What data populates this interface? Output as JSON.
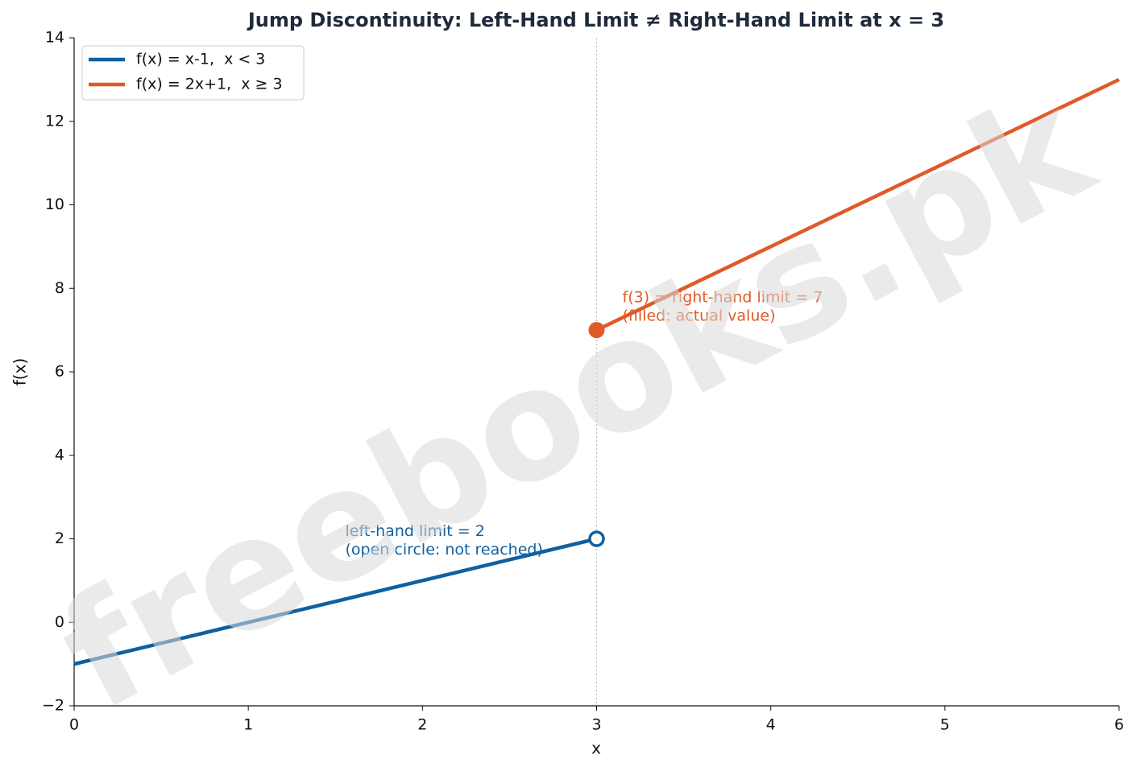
{
  "chart_data": {
    "type": "line",
    "title": "Jump Discontinuity: Left-Hand Limit ≠ Right-Hand Limit at x = 3",
    "x_label": "x",
    "y_label": "f(x)",
    "series": [
      {
        "name": "f(x) = x-1,  x < 3",
        "color": "#1060a0",
        "x": [
          0,
          3
        ],
        "values": [
          -1,
          2
        ],
        "marker": "open"
      },
      {
        "name": "f(x) = 2x+1,  x ≥ 3",
        "color": "#e05a28",
        "x": [
          3,
          6
        ],
        "values": [
          7,
          13
        ],
        "marker": "filled"
      }
    ],
    "annotations": [
      {
        "lines": [
          "left-hand limit = 2",
          "(open circle: not reached)"
        ],
        "color": "#1060a0"
      },
      {
        "lines": [
          "f(3) = right-hand limit = 7",
          "(filled: actual value)"
        ],
        "color": "#e05a28"
      }
    ],
    "vline": 3,
    "watermark": "freebooks.pk",
    "xlim": [
      0,
      6
    ],
    "xticks": [
      0,
      1,
      2,
      3,
      4,
      5,
      6
    ],
    "ylim": [
      -2,
      14
    ],
    "yticks": [
      {
        "value": -2,
        "label": "−2"
      },
      0,
      2,
      4,
      6,
      8,
      10,
      12,
      14
    ],
    "legend": "upper left",
    "grid": false
  }
}
